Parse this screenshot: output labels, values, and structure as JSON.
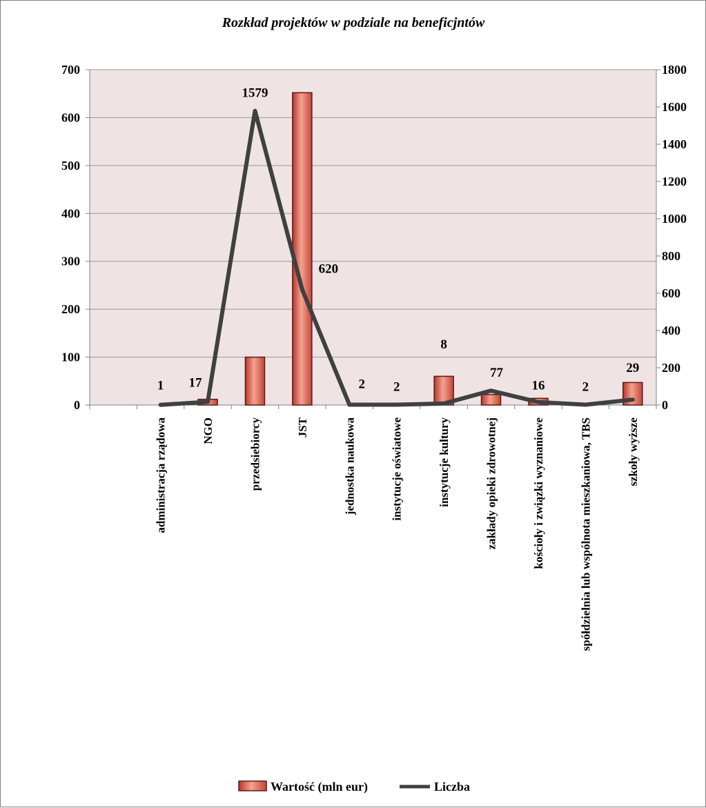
{
  "chart_data": {
    "type": "bar",
    "title": "Rozkład projektów w podziale na beneficjntów",
    "categories": [
      "",
      "administracja rządowa",
      "NGO",
      "przedsiebiorcy",
      "JST",
      "jednostka naukowa",
      "instytucje oświatowe",
      "instytucje kultury",
      "zakłady opieki zdrowotnej",
      "kościoły i związki wyznaniowe",
      "spółdzielnia lub wspólnota mieszkaniowa, TBS",
      "szkoły wyższe"
    ],
    "series": [
      {
        "name": "Wartość (mln eur)",
        "type": "bar",
        "axis": "left",
        "color": "#d9584a",
        "values": [
          null,
          0,
          12,
          100,
          652,
          0,
          0,
          60,
          22,
          14,
          0,
          47
        ]
      },
      {
        "name": "Liczba",
        "type": "line",
        "axis": "right",
        "color": "#404040",
        "values": [
          null,
          1,
          17,
          1579,
          620,
          2,
          2,
          8,
          77,
          16,
          2,
          29
        ],
        "labels": [
          "",
          "1",
          "17",
          "1579",
          "620",
          "2",
          "2",
          "8",
          "77",
          "16",
          "2",
          "29"
        ]
      }
    ],
    "y_left": {
      "min": 0,
      "max": 700,
      "ticks": [
        0,
        100,
        200,
        300,
        400,
        500,
        600,
        700
      ]
    },
    "y_right": {
      "min": 0,
      "max": 1800,
      "ticks": [
        0,
        200,
        400,
        600,
        800,
        1000,
        1200,
        1400,
        1600,
        1800
      ]
    },
    "grid": true,
    "legend": "bottom",
    "plot_background": "#efe4e3"
  }
}
